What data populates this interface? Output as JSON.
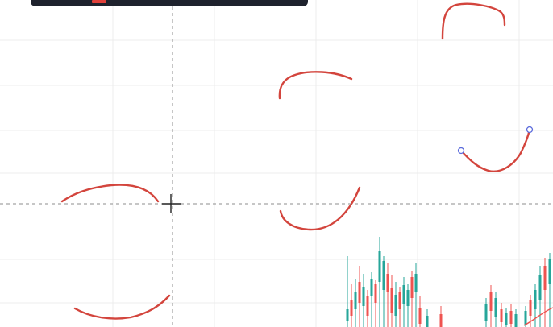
{
  "chart": {
    "drawing_color": "#d3453d",
    "handle_color": "#5b6bdc",
    "candle_up_color": "#26a69a",
    "candle_down_color": "#ef5350",
    "grid_color": "#ececec",
    "crosshair_color": "#8c8c8c",
    "cursor_icon": "crosshair-cursor-icon"
  },
  "toolbar": {
    "active_tool_icon": "brush-icon",
    "active_color": "#e0403a"
  }
}
